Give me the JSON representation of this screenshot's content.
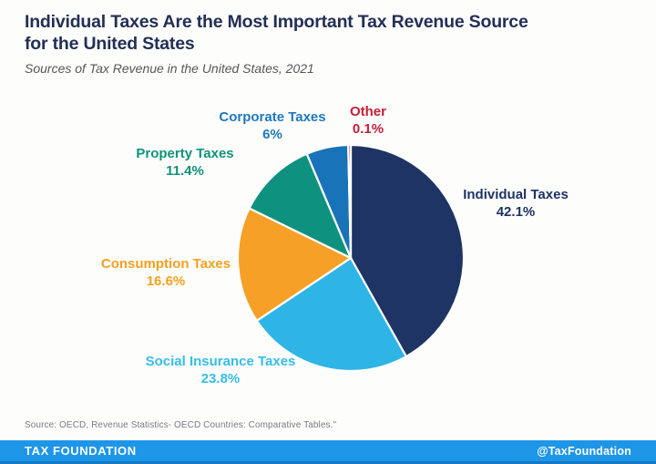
{
  "header": {
    "title_lines": [
      "Individual Taxes Are the Most Important Tax Revenue Source",
      "for the United States"
    ],
    "subtitle": "Sources of Tax Revenue in the United States, 2021"
  },
  "chart_data": {
    "type": "pie",
    "title": "Sources of Tax Revenue in the United States, 2021",
    "unit": "percent",
    "start_angle_deg": 0,
    "direction": "clockwise",
    "slices": [
      {
        "label": "Individual Taxes",
        "value": 42.1,
        "display": "42.1%",
        "color": "#1D3464",
        "label_color": "#1D3464"
      },
      {
        "label": "Social Insurance Taxes",
        "value": 23.8,
        "display": "23.8%",
        "color": "#2FB4E6",
        "label_color": "#35BDE8"
      },
      {
        "label": "Consumption Taxes",
        "value": 16.6,
        "display": "16.6%",
        "color": "#F6A028",
        "label_color": "#F5A01E"
      },
      {
        "label": "Property Taxes",
        "value": 11.4,
        "display": "11.4%",
        "color": "#0F9180",
        "label_color": "#0E9379"
      },
      {
        "label": "Corporate Taxes",
        "value": 6,
        "display": "6%",
        "color": "#1973B9",
        "label_color": "#1E78BE"
      },
      {
        "label": "Other",
        "value": 0.1,
        "display": "0.1%",
        "color": "#C41F3A",
        "label_color": "#C41F3A"
      }
    ]
  },
  "source": {
    "text": "Source: OECD, Revenue Statistics- OECD Countries: Comparative Tables.\""
  },
  "footer": {
    "brand": "TAX FOUNDATION",
    "handle": "@TaxFoundation",
    "bar_color": "#1E96E8"
  },
  "theme": {
    "title_color": "#232F55",
    "subtitle_color": "#57575C",
    "source_color": "#7A7C80",
    "footer_text_color": "#FFFFFF",
    "background": "#FDFDFC"
  }
}
